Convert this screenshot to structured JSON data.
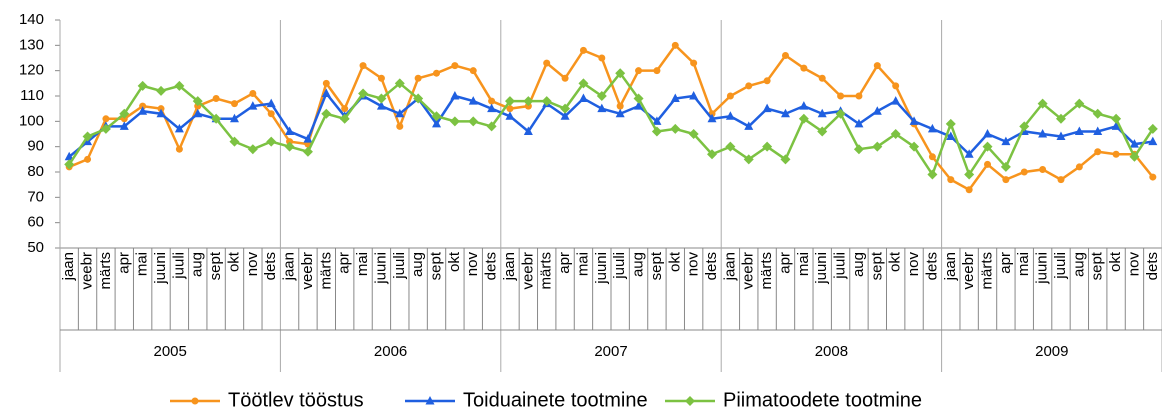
{
  "chart_data": {
    "type": "line",
    "categories": [
      "jaan",
      "veebr",
      "märts",
      "apr",
      "mai",
      "juuni",
      "juuli",
      "aug",
      "sept",
      "okt",
      "nov",
      "dets",
      "jaan",
      "veebr",
      "märts",
      "apr",
      "mai",
      "juuni",
      "juuli",
      "aug",
      "sept",
      "okt",
      "nov",
      "dets",
      "jaan",
      "veebr",
      "märts",
      "apr",
      "mai",
      "juuni",
      "juuli",
      "aug",
      "sept",
      "okt",
      "nov",
      "dets",
      "jaan",
      "veebr",
      "märts",
      "apr",
      "mai",
      "juuni",
      "juuli",
      "aug",
      "sept",
      "okt",
      "nov",
      "dets",
      "jaan",
      "veebr",
      "märts",
      "apr",
      "mai",
      "juuni",
      "juuli",
      "aug",
      "sept",
      "okt",
      "nov",
      "dets"
    ],
    "years": [
      "2005",
      "2006",
      "2007",
      "2008",
      "2009"
    ],
    "series": [
      {
        "name": "Töötlev tööstus",
        "color": "#f7941d",
        "marker": "circle",
        "values": [
          82,
          85,
          101,
          101,
          106,
          105,
          89,
          106,
          109,
          107,
          111,
          103,
          92,
          91,
          115,
          105,
          122,
          117,
          98,
          117,
          119,
          122,
          120,
          108,
          105,
          106,
          123,
          117,
          128,
          125,
          106,
          120,
          120,
          130,
          123,
          103,
          110,
          114,
          116,
          126,
          121,
          117,
          110,
          110,
          122,
          114,
          99,
          86,
          77,
          73,
          83,
          77,
          80,
          81,
          77,
          82,
          88,
          87,
          87,
          78
        ]
      },
      {
        "name": "Toiduainete tootmine",
        "color": "#1f5fe0",
        "marker": "triangle",
        "values": [
          86,
          92,
          98,
          98,
          104,
          103,
          97,
          103,
          101,
          101,
          106,
          107,
          96,
          93,
          111,
          102,
          110,
          106,
          103,
          109,
          99,
          110,
          108,
          105,
          102,
          96,
          107,
          102,
          109,
          105,
          103,
          106,
          100,
          109,
          110,
          101,
          102,
          98,
          105,
          103,
          106,
          103,
          104,
          99,
          104,
          108,
          100,
          97,
          94,
          87,
          95,
          92,
          96,
          95,
          94,
          96,
          96,
          98,
          91,
          92
        ]
      },
      {
        "name": "Piimatoodete tootmine",
        "color": "#7cc242",
        "marker": "diamond",
        "values": [
          83,
          94,
          97,
          103,
          114,
          112,
          114,
          108,
          101,
          92,
          89,
          92,
          90,
          88,
          103,
          101,
          111,
          109,
          115,
          109,
          102,
          100,
          100,
          98,
          108,
          108,
          108,
          105,
          115,
          110,
          119,
          109,
          96,
          97,
          95,
          87,
          90,
          85,
          90,
          85,
          101,
          96,
          103,
          89,
          90,
          95,
          90,
          79,
          99,
          79,
          90,
          82,
          98,
          107,
          101,
          107,
          103,
          101,
          86,
          97
        ]
      }
    ],
    "ylim": [
      50,
      140
    ],
    "yticks": [
      50,
      60,
      70,
      80,
      90,
      100,
      110,
      120,
      130,
      140
    ],
    "grid": false,
    "legend": "bottom"
  }
}
